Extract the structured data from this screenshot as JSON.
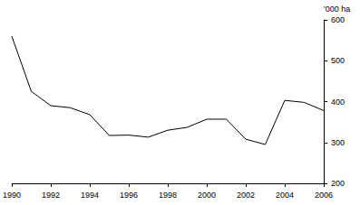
{
  "chart_data": {
    "type": "line",
    "y_label": "'000 ha",
    "x": [
      1990,
      1991,
      1992,
      1993,
      1994,
      1995,
      1996,
      1997,
      1998,
      1999,
      2000,
      2001,
      2002,
      2003,
      2004,
      2005,
      2006
    ],
    "values": [
      560,
      425,
      390,
      385,
      368,
      317,
      318,
      313,
      330,
      337,
      357,
      357,
      308,
      295,
      403,
      398,
      378
    ],
    "color": "#000000",
    "xlim": [
      1990,
      2006
    ],
    "xticks": [
      1990,
      1992,
      1994,
      1996,
      1998,
      2000,
      2002,
      2004,
      2006
    ],
    "ylim": [
      200,
      600
    ],
    "yticks": [
      200,
      300,
      400,
      500,
      600
    ],
    "grid": false
  }
}
